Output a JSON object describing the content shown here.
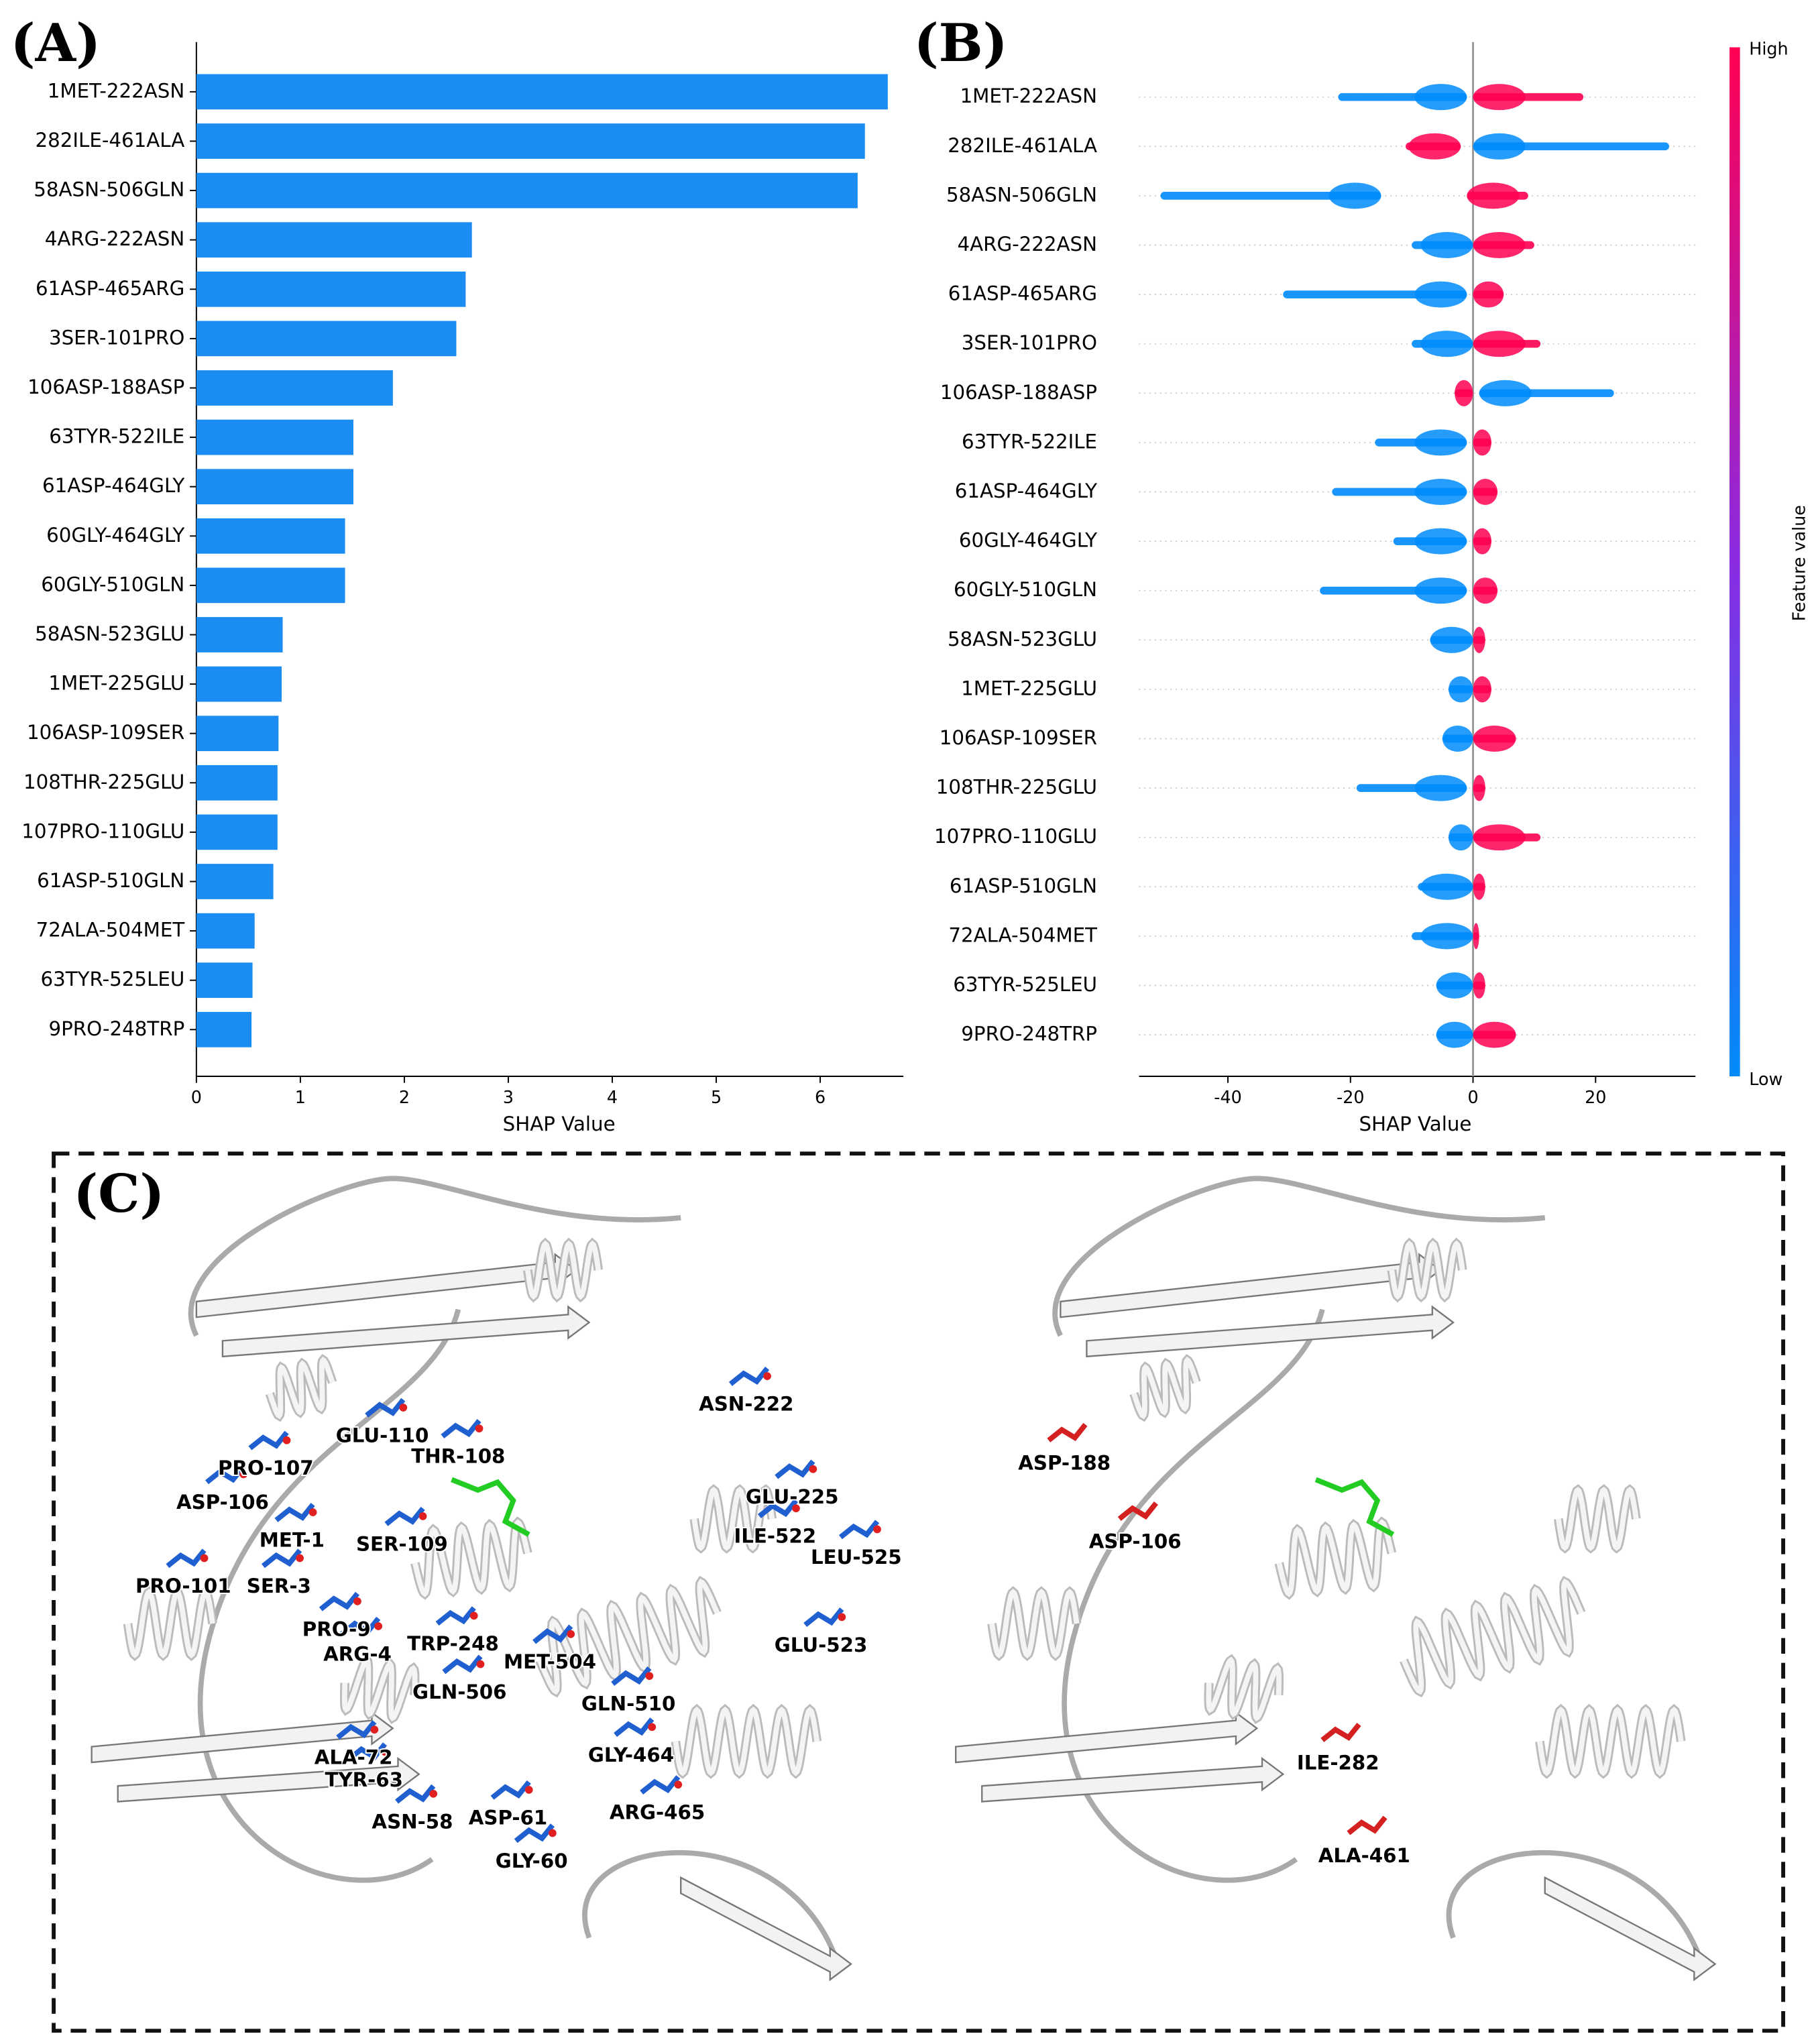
{
  "chart_data": [
    {
      "type": "hbar",
      "panel_label": "(A)",
      "xlabel": "SHAP Value",
      "color": "#1a8cf2",
      "categories": [
        "1MET-222ASN",
        "282ILE-461ALA",
        "58ASN-506GLN",
        "4ARG-222ASN",
        "61ASP-465ARG",
        "3SER-101PRO",
        "106ASP-188ASP",
        "63TYR-522ILE",
        "61ASP-464GLY",
        "60GLY-464GLY",
        "60GLY-510GLN",
        "58ASN-523GLU",
        "1MET-225GLU",
        "106ASP-109SER",
        "108THR-225GLU",
        "107PRO-110GLU",
        "61ASP-510GLN",
        "72ALA-504MET",
        "63TYR-525LEU",
        "9PRO-248TRP"
      ],
      "values": [
        6.65,
        6.43,
        6.36,
        2.65,
        2.59,
        2.5,
        1.89,
        1.51,
        1.51,
        1.43,
        1.43,
        0.83,
        0.82,
        0.79,
        0.78,
        0.78,
        0.74,
        0.56,
        0.54,
        0.53
      ],
      "xlim": [
        0,
        6.8
      ],
      "xticks": [
        0,
        1,
        2,
        3,
        4,
        5,
        6
      ]
    },
    {
      "type": "beeswarm",
      "panel_label": "(B)",
      "xlabel": "SHAP Value",
      "colorbar_label": "Feature value",
      "categories": [
        "1MET-222ASN",
        "282ILE-461ALA",
        "58ASN-506GLN",
        "4ARG-222ASN",
        "61ASP-465ARG",
        "3SER-101PRO",
        "106ASP-188ASP",
        "63TYR-522ILE",
        "61ASP-464GLY",
        "60GLY-464GLY",
        "60GLY-510GLN",
        "58ASN-523GLU",
        "1MET-225GLU",
        "106ASP-109SER",
        "108THR-225GLU",
        "107PRO-110GLU",
        "61ASP-510GLN",
        "72ALA-504MET",
        "63TYR-525LEU",
        "9PRO-248TRP"
      ],
      "series": [
        {
          "name": "High",
          "color": "#ff0052",
          "values": [
            [
              0,
              18
            ],
            [
              -11,
              -2
            ],
            [
              -1,
              9
            ],
            [
              0,
              10
            ],
            [
              0,
              5
            ],
            [
              0,
              11
            ],
            [
              -3,
              0
            ],
            [
              0,
              3
            ],
            [
              0,
              4
            ],
            [
              0,
              3
            ],
            [
              0,
              4
            ],
            [
              0,
              2
            ],
            [
              0,
              3
            ],
            [
              0,
              7
            ],
            [
              0,
              2
            ],
            [
              0,
              11
            ],
            [
              0,
              2
            ],
            [
              0,
              1
            ],
            [
              0,
              2
            ],
            [
              0,
              7
            ]
          ]
        },
        {
          "name": "Low",
          "color": "#008bfb",
          "values": [
            [
              -22,
              -1
            ],
            [
              0,
              32
            ],
            [
              -51,
              -15
            ],
            [
              -10,
              0
            ],
            [
              -31,
              -1
            ],
            [
              -10,
              0
            ],
            [
              1,
              23
            ],
            [
              -16,
              -1
            ],
            [
              -23,
              -1
            ],
            [
              -13,
              -1
            ],
            [
              -25,
              -1
            ],
            [
              -7,
              0
            ],
            [
              -4,
              0
            ],
            [
              -5,
              0
            ],
            [
              -19,
              -1
            ],
            [
              -4,
              0
            ],
            [
              -9,
              0
            ],
            [
              -10,
              0
            ],
            [
              -6,
              0
            ],
            [
              -6,
              0
            ]
          ]
        }
      ],
      "xlim": [
        -54.5,
        36.3
      ],
      "xticks": [
        -40,
        -20,
        0,
        20
      ]
    }
  ],
  "structure": {
    "panel_label": "(C)",
    "left_residues": [
      "ASN-222",
      "GLU-110",
      "THR-108",
      "PRO-107",
      "GLU-225",
      "ASP-106",
      "MET-1",
      "ILE-522",
      "SER-109",
      "LEU-525",
      "PRO-101",
      "SER-3",
      "PRO-9",
      "TRP-248",
      "GLU-523",
      "ARG-4",
      "MET-504",
      "GLN-506",
      "GLN-510",
      "GLY-464",
      "ALA-72",
      "TYR-63",
      "ARG-465",
      "ASN-58",
      "ASP-61",
      "GLY-60"
    ],
    "right_residues": [
      "ASP-188",
      "ASP-106",
      "ILE-282",
      "ALA-461"
    ]
  }
}
